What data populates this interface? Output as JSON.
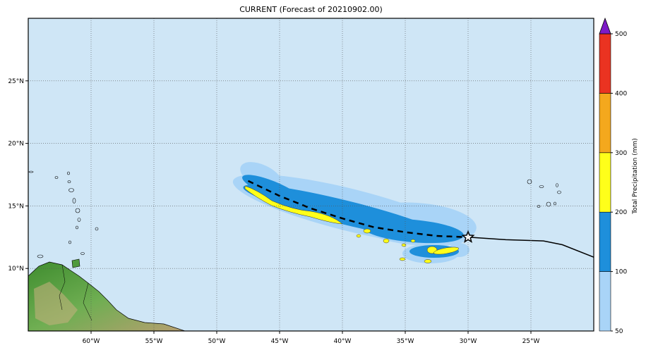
{
  "title": "CURRENT (Forecast of 20210902.00)",
  "map": {
    "lon_range": [
      -65,
      -20
    ],
    "lat_range": [
      5,
      30
    ],
    "lon_ticks": [
      {
        "value": -60,
        "label": "60°W"
      },
      {
        "value": -55,
        "label": "55°W"
      },
      {
        "value": -50,
        "label": "50°W"
      },
      {
        "value": -45,
        "label": "45°W"
      },
      {
        "value": -40,
        "label": "40°W"
      },
      {
        "value": -35,
        "label": "35°W"
      },
      {
        "value": -30,
        "label": "30°W"
      },
      {
        "value": -25,
        "label": "25°W"
      }
    ],
    "lat_ticks": [
      {
        "value": 25,
        "label": "25°N"
      },
      {
        "value": 20,
        "label": "20°N"
      },
      {
        "value": 15,
        "label": "15°N"
      },
      {
        "value": 10,
        "label": "10°N"
      }
    ],
    "ocean_color": "#cfe6f6",
    "grid": true,
    "storm_marker": {
      "icon": "star-icon",
      "lon": -30.0,
      "lat": 12.5
    },
    "forecast_track": [
      [
        -47.5,
        17.0
      ],
      [
        -45.0,
        15.8
      ],
      [
        -42.5,
        14.8
      ],
      [
        -40.0,
        14.0
      ],
      [
        -37.5,
        13.3
      ],
      [
        -35.0,
        12.9
      ],
      [
        -32.5,
        12.6
      ],
      [
        -30.0,
        12.5
      ]
    ],
    "past_track": [
      [
        -30.0,
        12.5
      ],
      [
        -27.0,
        12.3
      ],
      [
        -24.0,
        12.2
      ],
      [
        -22.5,
        11.9
      ],
      [
        -20.0,
        10.9
      ]
    ]
  },
  "colorbar": {
    "label": "Total Precipitation (mm)",
    "levels": [
      {
        "value": 50,
        "label": "50",
        "color": "#a9d4f7"
      },
      {
        "value": 100,
        "label": "100",
        "color": "#1e8fdb"
      },
      {
        "value": 200,
        "label": "200",
        "color": "#ffff1a"
      },
      {
        "value": 300,
        "label": "300",
        "color": "#f4a81d"
      },
      {
        "value": 400,
        "label": "400",
        "color": "#ea3321"
      },
      {
        "value": 500,
        "label": "500",
        "color": "#7d1ac7"
      }
    ]
  }
}
